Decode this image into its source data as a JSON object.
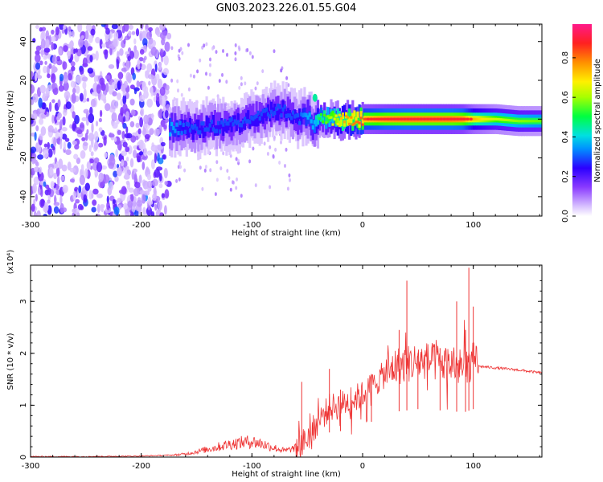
{
  "title": "GN03.2023.226.01.55.G04",
  "chart_data": [
    {
      "type": "heatmap",
      "xlabel": "Height of straight line (km)",
      "ylabel": "Frequency (Hz)",
      "xlim": [
        -300,
        162
      ],
      "ylim": [
        -50,
        49
      ],
      "xticks": [
        -300,
        -200,
        -100,
        0,
        100
      ],
      "yticks": [
        -40,
        -20,
        0,
        20,
        40
      ],
      "colorbar": {
        "label": "Normalized spectral amplitude",
        "range": [
          0,
          0.97
        ],
        "ticks": [
          0.0,
          0.2,
          0.4,
          0.6,
          0.8
        ],
        "colors": [
          "#ffffff",
          "#c9a7ff",
          "#7b2cff",
          "#2b00ff",
          "#00b7ff",
          "#00e8b0",
          "#2bff00",
          "#c8ff00",
          "#ffe600",
          "#ff9000",
          "#ff2a2a",
          "#ff1a80"
        ]
      },
      "noise_region_x": [
        -300,
        -175
      ],
      "signal_ridge": [
        {
          "x": -175,
          "f": -5,
          "amp": 0.35
        },
        {
          "x": -160,
          "f": -4,
          "amp": 0.3
        },
        {
          "x": -150,
          "f": -6,
          "amp": 0.3
        },
        {
          "x": -140,
          "f": -3,
          "amp": 0.3
        },
        {
          "x": -130,
          "f": -4,
          "amp": 0.3
        },
        {
          "x": -120,
          "f": -3,
          "amp": 0.3
        },
        {
          "x": -110,
          "f": -2,
          "amp": 0.3
        },
        {
          "x": -100,
          "f": 1,
          "amp": 0.3
        },
        {
          "x": -90,
          "f": 2,
          "amp": 0.3
        },
        {
          "x": -80,
          "f": 5,
          "amp": 0.3
        },
        {
          "x": -70,
          "f": 4,
          "amp": 0.3
        },
        {
          "x": -60,
          "f": 0,
          "amp": 0.3
        },
        {
          "x": -50,
          "f": 2,
          "amp": 0.35
        },
        {
          "x": -45,
          "f": -4,
          "amp": 0.35
        },
        {
          "x": -40,
          "f": 1,
          "amp": 0.5
        },
        {
          "x": -30,
          "f": 0,
          "amp": 0.6
        },
        {
          "x": -20,
          "f": -1,
          "amp": 0.75
        },
        {
          "x": -10,
          "f": 0,
          "amp": 0.8
        },
        {
          "x": 0,
          "f": 0,
          "amp": 0.85
        },
        {
          "x": 20,
          "f": 0,
          "amp": 0.9
        },
        {
          "x": 40,
          "f": 0,
          "amp": 0.92
        },
        {
          "x": 60,
          "f": 0,
          "amp": 0.92
        },
        {
          "x": 80,
          "f": 0,
          "amp": 0.92
        },
        {
          "x": 90,
          "f": 0,
          "amp": 0.9
        },
        {
          "x": 100,
          "f": 0,
          "amp": 0.75
        },
        {
          "x": 120,
          "f": 0,
          "amp": 0.62
        },
        {
          "x": 140,
          "f": -1,
          "amp": 0.58
        },
        {
          "x": 162,
          "f": -1,
          "amp": 0.56
        }
      ]
    },
    {
      "type": "line",
      "xlabel": "Height of straight line (km)",
      "ylabel": "SNR (10 * v/v)",
      "yscale_label": "(x10⁴)",
      "xlim": [
        -300,
        162
      ],
      "ylim": [
        0,
        3.7
      ],
      "xticks": [
        -300,
        -200,
        -100,
        0,
        100
      ],
      "yticks": [
        0,
        1,
        2,
        3
      ],
      "series": [
        {
          "color": "#ee3333",
          "x": [
            -300,
            -250,
            -200,
            -170,
            -160,
            -140,
            -120,
            -110,
            -100,
            -90,
            -80,
            -70,
            -60,
            -50,
            -40,
            -30,
            -20,
            -10,
            0,
            10,
            20,
            30,
            40,
            50,
            60,
            70,
            80,
            90,
            100,
            105,
            120,
            140,
            162
          ],
          "y": [
            0.01,
            0.01,
            0.02,
            0.04,
            0.06,
            0.15,
            0.25,
            0.28,
            0.3,
            0.25,
            0.18,
            0.12,
            0.18,
            0.35,
            0.7,
            0.95,
            1.0,
            1.1,
            1.2,
            1.4,
            1.6,
            1.75,
            1.8,
            1.85,
            1.85,
            1.8,
            1.8,
            1.7,
            1.85,
            1.75,
            1.72,
            1.68,
            1.62
          ]
        }
      ],
      "spikes": [
        {
          "x": -55,
          "y": 1.45
        },
        {
          "x": -30,
          "y": 1.7
        },
        {
          "x": -20,
          "y": 1.3
        },
        {
          "x": 8,
          "y": 1.6
        },
        {
          "x": 33,
          "y": 2.45
        },
        {
          "x": 40,
          "y": 3.4
        },
        {
          "x": 50,
          "y": 2.0
        },
        {
          "x": 70,
          "y": 2.1
        },
        {
          "x": 85,
          "y": 3.0
        },
        {
          "x": 93,
          "y": 2.45
        },
        {
          "x": 96,
          "y": 3.65
        },
        {
          "x": 100,
          "y": 2.9
        }
      ]
    }
  ]
}
